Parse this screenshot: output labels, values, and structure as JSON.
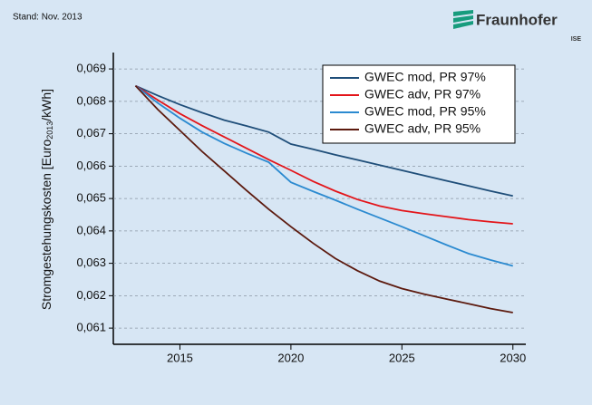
{
  "header": {
    "stand": "Stand: Nov. 2013",
    "logo": "Fraunhofer",
    "logo_sub": "ISE"
  },
  "chart_data": {
    "type": "line",
    "ylabel": [
      "Stromgestehungskosten [Euro",
      "2013",
      "/kWh]"
    ],
    "x": [
      2013,
      2014,
      2015,
      2016,
      2017,
      2018,
      2019,
      2020,
      2021,
      2022,
      2023,
      2024,
      2025,
      2026,
      2027,
      2028,
      2029,
      2030
    ],
    "xlim": [
      2012,
      2030.5
    ],
    "xticks": [
      2015,
      2020,
      2025,
      2030
    ],
    "ylim": [
      0.0605,
      0.06945
    ],
    "yticks": [
      {
        "value": 0.061,
        "label": "0,061"
      },
      {
        "value": 0.062,
        "label": "0,062"
      },
      {
        "value": 0.063,
        "label": "0,063"
      },
      {
        "value": 0.064,
        "label": "0,064"
      },
      {
        "value": 0.065,
        "label": "0,065"
      },
      {
        "value": 0.066,
        "label": "0,066"
      },
      {
        "value": 0.067,
        "label": "0,067"
      },
      {
        "value": 0.068,
        "label": "0,068"
      },
      {
        "value": 0.069,
        "label": "0,069"
      }
    ],
    "grid": true,
    "legend": "top-right",
    "series": [
      {
        "name": "GWEC mod, PR 97%",
        "color": "#1f4e79",
        "values": [
          0.06848,
          0.06818,
          0.0679,
          0.06765,
          0.06742,
          0.06724,
          0.06705,
          0.06668,
          0.06652,
          0.06635,
          0.06619,
          0.06603,
          0.06587,
          0.06571,
          0.06555,
          0.06539,
          0.06523,
          0.06508
        ]
      },
      {
        "name": "GWEC adv, PR 97%",
        "color": "#e3151a",
        "values": [
          0.06848,
          0.06804,
          0.06762,
          0.06725,
          0.0669,
          0.06655,
          0.0662,
          0.06587,
          0.06553,
          0.06523,
          0.06497,
          0.06477,
          0.06463,
          0.06453,
          0.06444,
          0.06435,
          0.06428,
          0.06422
        ]
      },
      {
        "name": "GWEC mod, PR 95%",
        "color": "#2b8ad0",
        "values": [
          0.06848,
          0.06795,
          0.06748,
          0.06705,
          0.0667,
          0.0664,
          0.06612,
          0.0655,
          0.06522,
          0.06495,
          0.06467,
          0.0644,
          0.06413,
          0.06385,
          0.06357,
          0.0633,
          0.0631,
          0.06292
        ]
      },
      {
        "name": "GWEC adv, PR 95%",
        "color": "#5c1a0e",
        "values": [
          0.06848,
          0.06775,
          0.0671,
          0.06645,
          0.06585,
          0.06525,
          0.06467,
          0.06413,
          0.06362,
          0.06315,
          0.06277,
          0.06245,
          0.06222,
          0.06205,
          0.0619,
          0.06175,
          0.0616,
          0.06148
        ]
      }
    ]
  }
}
